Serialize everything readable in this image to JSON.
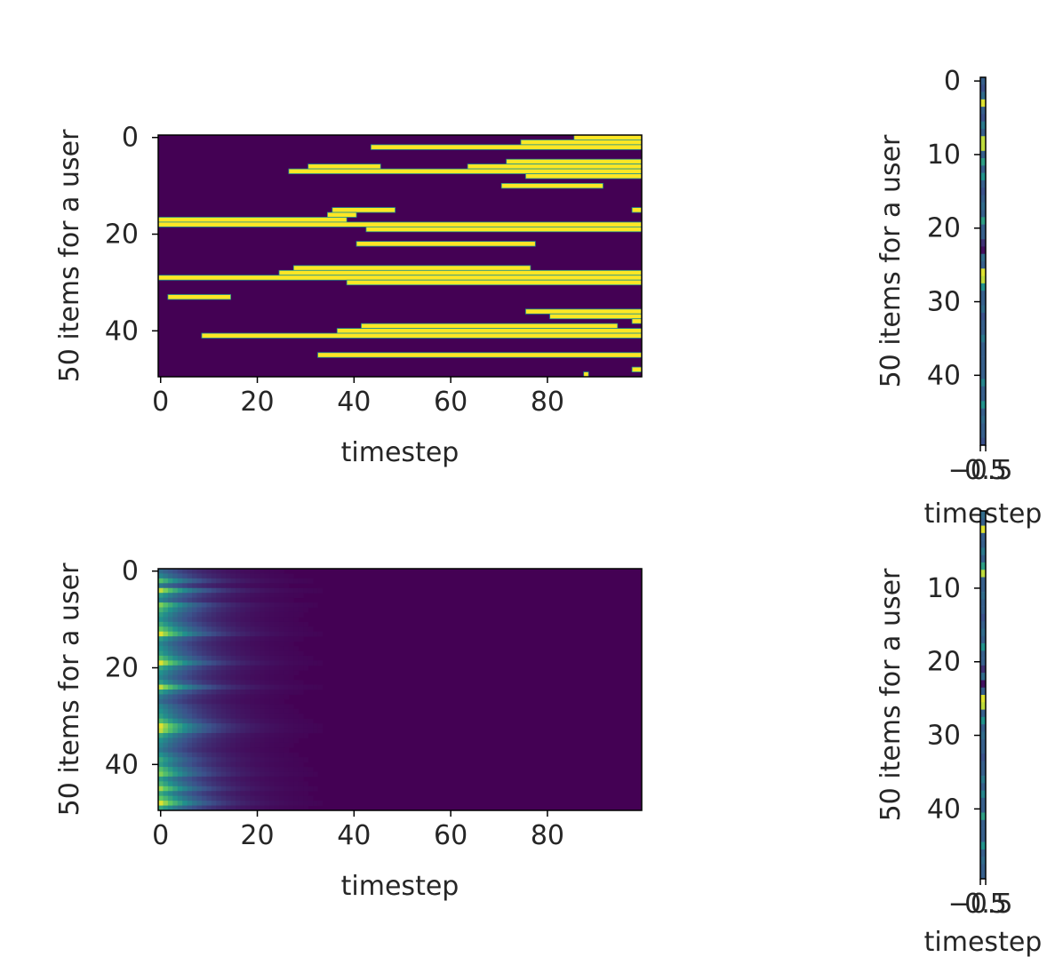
{
  "colormap": [
    "#440154",
    "#3b528b",
    "#21918c",
    "#5ec962",
    "#fde725"
  ],
  "chart_data": [
    {
      "id": "binary-heatmap",
      "type": "heatmap",
      "title": "",
      "xlabel": "timestep",
      "ylabel": "50 items for a user",
      "xticks": [
        0,
        20,
        40,
        60,
        80
      ],
      "yticks": [
        0,
        20,
        40
      ],
      "xlim": [
        -0.5,
        99.5
      ],
      "ylim": [
        49.5,
        -0.5
      ],
      "n_rows": 50,
      "n_cols": 100,
      "value_range": [
        0,
        1
      ],
      "note_encoding": "yellow = 1, purple = 0; each row lists active [start, end] timestep spans",
      "active_spans": [
        {
          "row": 0,
          "spans": [
            [
              86,
              99
            ]
          ]
        },
        {
          "row": 1,
          "spans": [
            [
              75,
              99
            ]
          ]
        },
        {
          "row": 2,
          "spans": [
            [
              44,
              99
            ]
          ]
        },
        {
          "row": 5,
          "spans": [
            [
              72,
              99
            ]
          ]
        },
        {
          "row": 6,
          "spans": [
            [
              31,
              45
            ],
            [
              64,
              99
            ]
          ]
        },
        {
          "row": 7,
          "spans": [
            [
              27,
              99
            ]
          ]
        },
        {
          "row": 8,
          "spans": [
            [
              76,
              99
            ]
          ]
        },
        {
          "row": 10,
          "spans": [
            [
              71,
              91
            ]
          ]
        },
        {
          "row": 15,
          "spans": [
            [
              36,
              48
            ],
            [
              98,
              99
            ]
          ]
        },
        {
          "row": 16,
          "spans": [
            [
              35,
              40
            ]
          ]
        },
        {
          "row": 17,
          "spans": [
            [
              0,
              38
            ]
          ]
        },
        {
          "row": 18,
          "spans": [
            [
              0,
              99
            ]
          ]
        },
        {
          "row": 19,
          "spans": [
            [
              43,
              99
            ]
          ]
        },
        {
          "row": 22,
          "spans": [
            [
              41,
              77
            ]
          ]
        },
        {
          "row": 27,
          "spans": [
            [
              28,
              76
            ]
          ]
        },
        {
          "row": 28,
          "spans": [
            [
              25,
              99
            ]
          ]
        },
        {
          "row": 29,
          "spans": [
            [
              0,
              99
            ]
          ]
        },
        {
          "row": 30,
          "spans": [
            [
              39,
              99
            ]
          ]
        },
        {
          "row": 33,
          "spans": [
            [
              2,
              14
            ]
          ]
        },
        {
          "row": 36,
          "spans": [
            [
              76,
              99
            ]
          ]
        },
        {
          "row": 37,
          "spans": [
            [
              81,
              99
            ]
          ]
        },
        {
          "row": 38,
          "spans": [
            [
              98,
              99
            ]
          ]
        },
        {
          "row": 39,
          "spans": [
            [
              42,
              94
            ]
          ]
        },
        {
          "row": 40,
          "spans": [
            [
              37,
              99
            ]
          ]
        },
        {
          "row": 41,
          "spans": [
            [
              9,
              99
            ]
          ]
        },
        {
          "row": 45,
          "spans": [
            [
              33,
              99
            ]
          ]
        },
        {
          "row": 48,
          "spans": [
            [
              98,
              99
            ]
          ]
        },
        {
          "row": 49,
          "spans": [
            [
              88,
              88
            ]
          ]
        }
      ]
    },
    {
      "id": "column-strip-top",
      "type": "heatmap",
      "title": "",
      "xlabel": "timestep",
      "ylabel": "50 items for a user",
      "yticks": [
        0,
        10,
        20,
        30,
        40
      ],
      "xtick_labels": [
        "−0.5",
        "0.5"
      ],
      "n_rows": 50,
      "n_cols": 1,
      "value_range": [
        0,
        1
      ],
      "values": [
        0.3,
        0.25,
        0.35,
        0.95,
        0.3,
        0.25,
        0.4,
        0.3,
        0.9,
        0.9,
        0.3,
        0.55,
        0.3,
        0.5,
        0.3,
        0.25,
        0.3,
        0.35,
        0.3,
        0.55,
        0.3,
        0.3,
        0.15,
        0.05,
        0.35,
        0.3,
        0.95,
        0.9,
        0.5,
        0.3,
        0.3,
        0.35,
        0.25,
        0.3,
        0.3,
        0.4,
        0.3,
        0.3,
        0.3,
        0.3,
        0.3,
        0.45,
        0.3,
        0.3,
        0.5,
        0.3,
        0.35,
        0.3,
        0.3,
        0.25
      ]
    },
    {
      "id": "decay-heatmap",
      "type": "heatmap",
      "title": "",
      "xlabel": "timestep",
      "ylabel": "50 items for a user",
      "xticks": [
        0,
        20,
        40,
        60,
        80
      ],
      "yticks": [
        0,
        20,
        40
      ],
      "xlim": [
        -0.5,
        99.5
      ],
      "ylim": [
        49.5,
        -0.5
      ],
      "n_rows": 50,
      "n_cols": 100,
      "value_range": [
        0,
        1
      ],
      "note_encoding": "each row decays exponentially from its value at timestep 0",
      "initial_values": [
        0.35,
        0.45,
        0.7,
        0.4,
        0.9,
        0.55,
        0.45,
        0.8,
        0.65,
        0.55,
        0.5,
        0.6,
        0.75,
        0.95,
        0.55,
        0.45,
        0.5,
        0.55,
        0.7,
        0.95,
        0.6,
        0.5,
        0.45,
        0.55,
        0.9,
        0.55,
        0.4,
        0.35,
        0.45,
        0.5,
        0.55,
        0.7,
        0.95,
        0.9,
        0.6,
        0.5,
        0.45,
        0.4,
        0.5,
        0.6,
        0.55,
        0.7,
        0.8,
        0.55,
        0.65,
        0.85,
        0.6,
        0.75,
        0.95,
        0.6
      ],
      "decay_rate": 0.13
    },
    {
      "id": "column-strip-bottom",
      "type": "heatmap",
      "title": "",
      "xlabel": "timestep",
      "ylabel": "50 items for a user",
      "yticks": [
        10,
        20,
        30,
        40
      ],
      "xtick_labels": [
        "−0.5",
        "0.5"
      ],
      "n_rows": 50,
      "n_cols": 1,
      "value_range": [
        0,
        1
      ],
      "values": [
        0.35,
        0.3,
        0.95,
        0.3,
        0.3,
        0.4,
        0.3,
        0.55,
        0.9,
        0.3,
        0.3,
        0.35,
        0.3,
        0.3,
        0.25,
        0.3,
        0.35,
        0.3,
        0.5,
        0.3,
        0.3,
        0.15,
        0.35,
        0.05,
        0.3,
        0.95,
        0.9,
        0.3,
        0.5,
        0.3,
        0.35,
        0.3,
        0.3,
        0.25,
        0.3,
        0.3,
        0.4,
        0.3,
        0.45,
        0.3,
        0.3,
        0.55,
        0.3,
        0.3,
        0.3,
        0.5,
        0.3,
        0.35,
        0.3,
        0.3
      ]
    }
  ]
}
